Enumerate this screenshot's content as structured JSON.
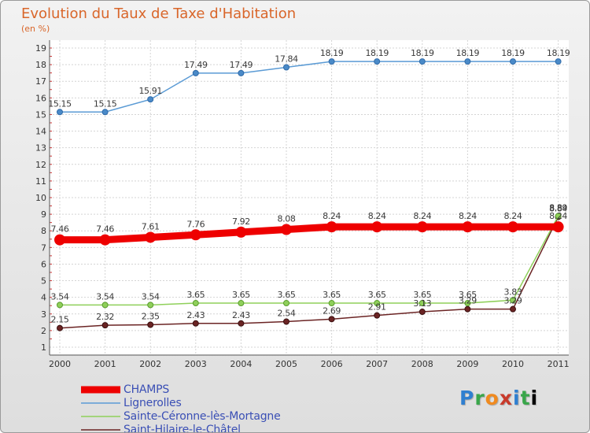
{
  "header": {
    "title": "Evolution du Taux de Taxe d'Habitation",
    "subtitle": "(en %)"
  },
  "logo": {
    "letters": [
      "P",
      "r",
      "o",
      "x",
      "i",
      "t",
      "i"
    ]
  },
  "chart_data": {
    "type": "line",
    "title": "Evolution du Taux de Taxe d'Habitation",
    "subtitle": "(en %)",
    "x": [
      "2000",
      "2001",
      "2002",
      "2003",
      "2004",
      "2005",
      "2006",
      "2007",
      "2008",
      "2009",
      "2010",
      "2011"
    ],
    "ylim": [
      1,
      19
    ],
    "yticks": [
      "1",
      "2",
      "3",
      "4",
      "5",
      "6",
      "7",
      "8",
      "9",
      "10",
      "11",
      "12",
      "13",
      "14",
      "15",
      "16",
      "17",
      "18",
      "19"
    ],
    "grid": true,
    "legend": "bottom-left",
    "series": [
      {
        "name": "CHAMPS",
        "color": "#ee0000",
        "values": [
          7.46,
          7.46,
          7.61,
          7.76,
          7.92,
          8.08,
          8.24,
          8.24,
          8.24,
          8.24,
          8.24,
          8.24
        ],
        "labels": [
          "7.46",
          "7.46",
          "7.61",
          "7.76",
          "7.92",
          "8.08",
          "8.24",
          "8.24",
          "8.24",
          "8.24",
          "8.24",
          "8.24"
        ]
      },
      {
        "name": "Lignerolles",
        "color": "#5b9bd5",
        "values": [
          15.15,
          15.15,
          15.91,
          17.49,
          17.49,
          17.84,
          18.19,
          18.19,
          18.19,
          18.19,
          18.19,
          18.19
        ],
        "labels": [
          "15.15",
          "15.15",
          "15.91",
          "17.49",
          "17.49",
          "17.84",
          "18.19",
          "18.19",
          "18.19",
          "18.19",
          "18.19",
          "18.19"
        ]
      },
      {
        "name": "Sainte-Céronne-lès-Mortagne",
        "color": "#8fd05a",
        "values": [
          3.54,
          3.54,
          3.54,
          3.65,
          3.65,
          3.65,
          3.65,
          3.65,
          3.65,
          3.65,
          3.83,
          8.89
        ],
        "labels": [
          "3.54",
          "3.54",
          "3.54",
          "3.65",
          "3.65",
          "3.65",
          "3.65",
          "3.65",
          "3.65",
          "3.65",
          "3.83",
          "8.89"
        ]
      },
      {
        "name": "Saint-Hilaire-le-Châtel",
        "color": "#6b2424",
        "values": [
          2.15,
          2.32,
          2.35,
          2.43,
          2.43,
          2.54,
          2.69,
          2.91,
          3.13,
          3.29,
          3.29,
          8.84
        ],
        "labels": [
          "2.15",
          "2.32",
          "2.35",
          "2.43",
          "2.43",
          "2.54",
          "2.69",
          "2.91",
          "3.13",
          "3.29",
          "3.29",
          "8.84"
        ]
      }
    ]
  }
}
